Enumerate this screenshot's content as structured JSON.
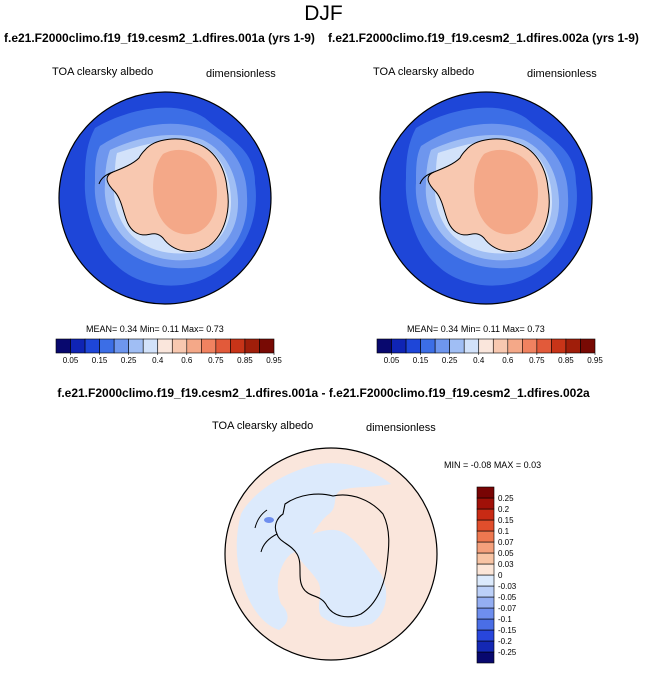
{
  "title": "DJF",
  "panels": [
    {
      "case_title": "f.e21.F2000climo.f19_f19.cesm2_1.dfires.001a (yrs 1-9)",
      "variable": "TOA clearsky albedo",
      "units": "dimensionless",
      "stats": {
        "mean_label": "MEAN=",
        "mean": "0.34",
        "min_label": "Min=",
        "min": "0.11",
        "max_label": "Max=",
        "max": "0.73"
      }
    },
    {
      "case_title": "f.e21.F2000climo.f19_f19.cesm2_1.dfires.002a (yrs 1-9)",
      "variable": "TOA clearsky albedo",
      "units": "dimensionless",
      "stats": {
        "mean_label": "MEAN=",
        "mean": "0.34",
        "min_label": "Min=",
        "min": "0.11",
        "max_label": "Max=",
        "max": "0.73"
      }
    }
  ],
  "difference": {
    "title": "f.e21.F2000climo.f19_f19.cesm2_1.dfires.001a - f.e21.F2000climo.f19_f19.cesm2_1.dfires.002a",
    "variable": "TOA clearsky albedo",
    "units": "dimensionless",
    "stats": {
      "min_label": "MIN =",
      "min": "-0.08",
      "max_label": "MAX =",
      "max": "0.03"
    }
  },
  "colors": {
    "abs_colorbar": [
      "#08086e",
      "#0f24b4",
      "#1e46d8",
      "#3c6ee6",
      "#6e96ee",
      "#a0bef4",
      "#d2e2fa",
      "#fae6dc",
      "#f8c8b0",
      "#f4a888",
      "#f08260",
      "#e25a3a",
      "#c83418",
      "#a01e0a",
      "#780a04"
    ],
    "diff_colorbar": [
      "#08086e",
      "#1428b4",
      "#2846dc",
      "#4a6ee6",
      "#6e8eee",
      "#94aef2",
      "#bcd0f8",
      "#dceafc",
      "#fce6d8",
      "#f8c4a4",
      "#f4a07c",
      "#ee7850",
      "#e04e2c",
      "#c82a14",
      "#a01008",
      "#780404"
    ],
    "ocean": "#1e46d8",
    "antarctica": "#f8c8b0",
    "plateau": "#f4a888",
    "diff_background": "#fae6dc",
    "diff_negative": "#dceafc"
  },
  "chart_data": [
    {
      "type": "heatmap",
      "projection": "polar stereographic (south pole)",
      "title": "f.e21.F2000climo.f19_f19.cesm2_1.dfires.001a (yrs 1-9)",
      "field": "TOA clearsky albedo",
      "units": "dimensionless",
      "mean": 0.34,
      "min": 0.11,
      "max": 0.73,
      "colorbar_levels": [
        0.05,
        0.15,
        0.25,
        0.4,
        0.6,
        0.75,
        0.85,
        0.95
      ],
      "colorbar_labels": [
        "0.05",
        "0.15",
        "0.25",
        "0.4",
        "0.6",
        "0.75",
        "0.85",
        "0.95"
      ]
    },
    {
      "type": "heatmap",
      "projection": "polar stereographic (south pole)",
      "title": "f.e21.F2000climo.f19_f19.cesm2_1.dfires.002a (yrs 1-9)",
      "field": "TOA clearsky albedo",
      "units": "dimensionless",
      "mean": 0.34,
      "min": 0.11,
      "max": 0.73,
      "colorbar_levels": [
        0.05,
        0.15,
        0.25,
        0.4,
        0.6,
        0.75,
        0.85,
        0.95
      ],
      "colorbar_labels": [
        "0.05",
        "0.15",
        "0.25",
        "0.4",
        "0.6",
        "0.75",
        "0.85",
        "0.95"
      ]
    },
    {
      "type": "heatmap",
      "projection": "polar stereographic (south pole)",
      "title": "f.e21.F2000climo.f19_f19.cesm2_1.dfires.001a - f.e21.F2000climo.f19_f19.cesm2_1.dfires.002a",
      "field": "TOA clearsky albedo",
      "units": "dimensionless",
      "min": -0.08,
      "max": 0.03,
      "colorbar_levels": [
        0.25,
        0.2,
        0.15,
        0.1,
        0.07,
        0.05,
        0.03,
        0,
        -0.03,
        -0.05,
        -0.07,
        -0.1,
        -0.15,
        -0.2,
        -0.25
      ],
      "colorbar_labels": [
        "0.25",
        "0.2",
        "0.15",
        "0.1",
        "0.07",
        "0.05",
        "0.03",
        "0",
        "-0.03",
        "-0.05",
        "-0.07",
        "-0.1",
        "-0.15",
        "-0.2",
        "-0.25"
      ]
    }
  ]
}
